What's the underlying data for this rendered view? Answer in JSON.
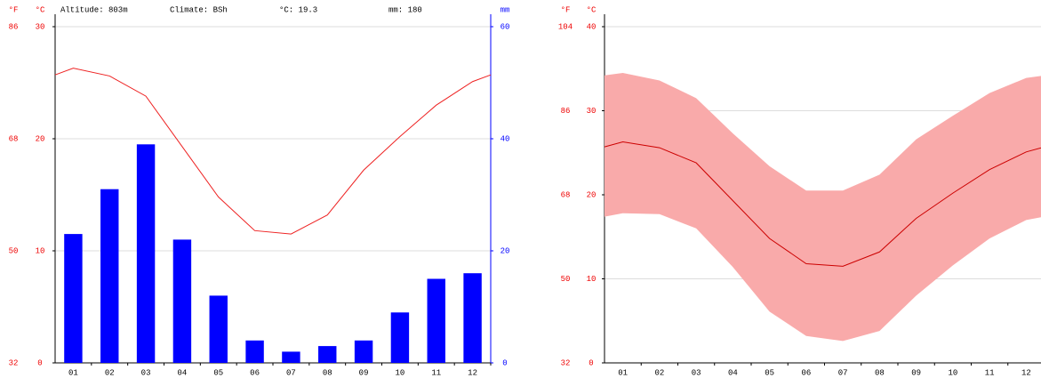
{
  "chart_data": [
    {
      "type": "climograph",
      "header": [
        "Altitude: 803m",
        "Climate: BSh",
        "°C: 19.3",
        "mm: 180"
      ],
      "units": {
        "f": "°F",
        "c": "°C",
        "mm": "mm"
      },
      "categories": [
        "01",
        "02",
        "03",
        "04",
        "05",
        "06",
        "07",
        "08",
        "09",
        "10",
        "11",
        "12"
      ],
      "ylim": [
        0,
        30
      ],
      "yticks": [
        0,
        10,
        20,
        30
      ],
      "fticks": [
        {
          "value": 0,
          "label": "32"
        },
        {
          "value": 10,
          "label": "50"
        },
        {
          "value": 20,
          "label": "68"
        },
        {
          "value": 30,
          "label": "86"
        }
      ],
      "y2lim": [
        0,
        60
      ],
      "y2ticks": [
        0,
        20,
        40,
        60
      ],
      "grid": true,
      "series": [
        {
          "mark": "bar",
          "axis": "y2",
          "color": "#0000ff",
          "values": [
            23,
            31,
            39,
            22,
            12,
            4,
            2,
            3,
            4,
            9,
            15,
            16
          ]
        },
        {
          "mark": "line",
          "color": "#ee2222",
          "values": [
            26.3,
            25.6,
            23.8,
            19.3,
            14.8,
            11.8,
            11.5,
            13.2,
            17.2,
            20.2,
            23.0,
            25.1
          ]
        }
      ]
    },
    {
      "type": "range",
      "units": {
        "f": "°F",
        "c": "°C"
      },
      "categories": [
        "01",
        "02",
        "03",
        "04",
        "05",
        "06",
        "07",
        "08",
        "09",
        "10",
        "11",
        "12"
      ],
      "ylim": [
        0,
        40
      ],
      "yticks": [
        0,
        10,
        20,
        30,
        40
      ],
      "fticks": [
        {
          "value": 0,
          "label": "32"
        },
        {
          "value": 10,
          "label": "50"
        },
        {
          "value": 20,
          "label": "68"
        },
        {
          "value": 30,
          "label": "86"
        },
        {
          "value": 40,
          "label": "104"
        }
      ],
      "grid": true,
      "series": [
        {
          "mark": "band",
          "color": "#f9aaaa",
          "high": [
            34.5,
            33.6,
            31.5,
            27.3,
            23.4,
            20.5,
            20.5,
            22.4,
            26.6,
            29.4,
            32.1,
            33.9
          ],
          "low": [
            17.8,
            17.7,
            16.0,
            11.4,
            6.1,
            3.2,
            2.6,
            3.8,
            8.0,
            11.6,
            14.8,
            17.0
          ]
        },
        {
          "mark": "line",
          "color": "#cc0000",
          "values": [
            26.3,
            25.6,
            23.8,
            19.3,
            14.8,
            11.8,
            11.5,
            13.2,
            17.2,
            20.2,
            23.0,
            25.1
          ]
        }
      ]
    }
  ]
}
